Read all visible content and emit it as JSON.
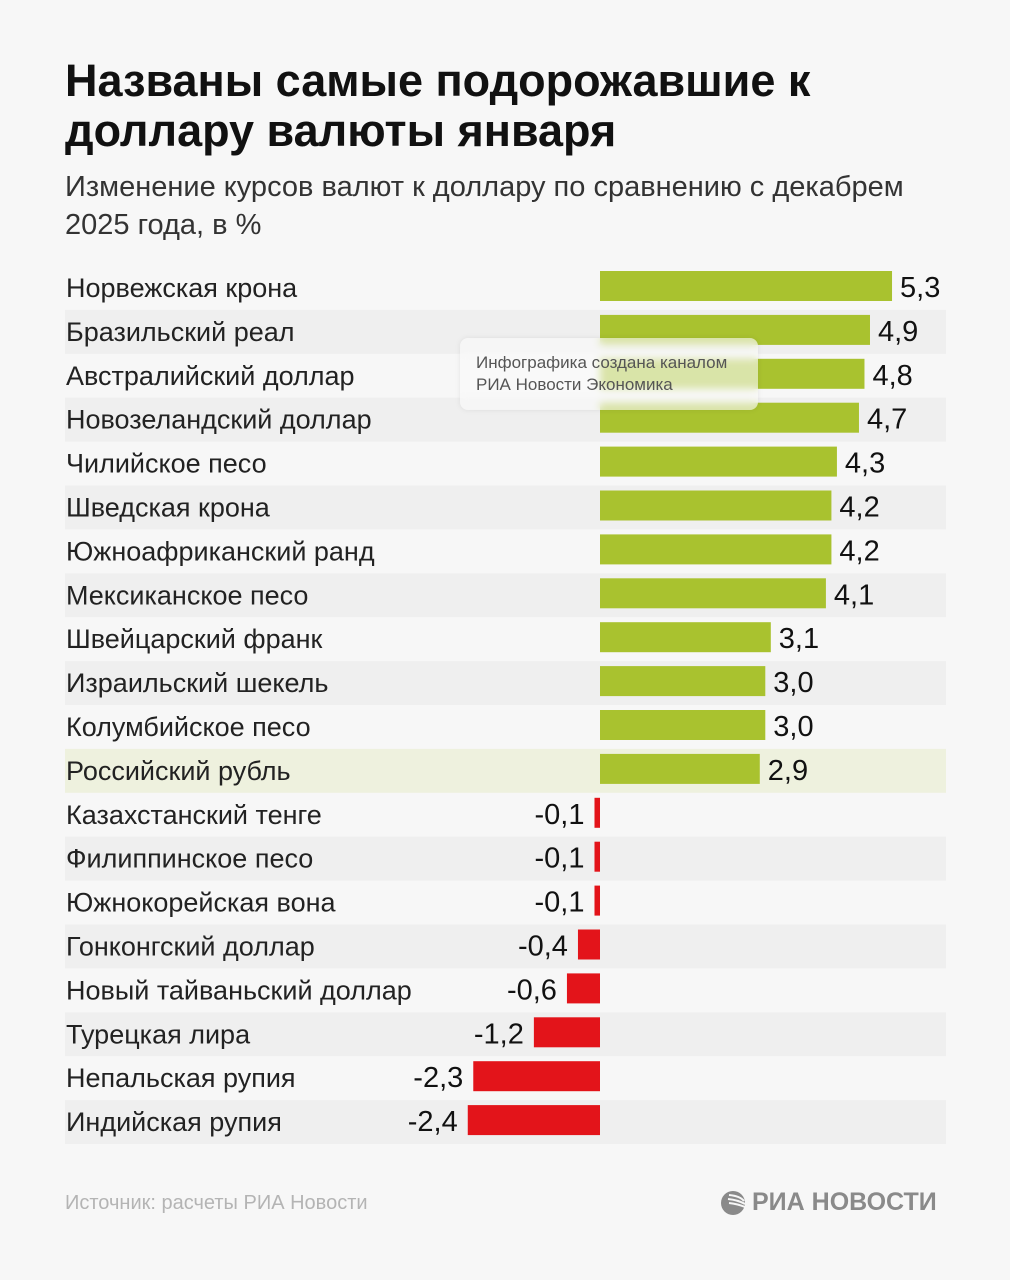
{
  "title": "Названы самые подорожавшие к доллару валюты января",
  "subtitle": "Изменение курсов валют к доллару по сравнению с декабрем 2025 года, в %",
  "source": "Источник: расчеты РИА Новости",
  "logo": "РИА НОВОСТИ",
  "watermark": "Инфографика создана каналом РИА Новости Экономика",
  "colors": {
    "positive": "#a9c22f",
    "negative": "#e3141a",
    "stripe": "#efefef",
    "highlight": "#eef1de"
  },
  "chart_data": {
    "type": "bar",
    "orientation": "horizontal",
    "highlight": "Российский рубль",
    "categories": [
      "Норвежская крона",
      "Бразильский реал",
      "Австралийский доллар",
      "Новозеландский доллар",
      "Чилийское песо",
      "Шведская крона",
      "Южноафриканский ранд",
      "Мексиканское песо",
      "Швейцарский франк",
      "Израильский шекель",
      "Колумбийское песо",
      "Российский рубль",
      "Казахстанский тенге",
      "Филиппинское песо",
      "Южнокорейская вона",
      "Гонконгский доллар",
      "Новый тайваньский доллар",
      "Турецкая лира",
      "Непальская рупия",
      "Индийская рупия"
    ],
    "values": [
      5.3,
      4.9,
      4.8,
      4.7,
      4.3,
      4.2,
      4.2,
      4.1,
      3.1,
      3.0,
      3.0,
      2.9,
      -0.1,
      -0.1,
      -0.1,
      -0.4,
      -0.6,
      -1.2,
      -2.3,
      -2.4
    ],
    "labels": [
      "5,3",
      "4,9",
      "4,8",
      "4,7",
      "4,3",
      "4,2",
      "4,2",
      "4,1",
      "3,1",
      "3,0",
      "3,0",
      "2,9",
      "-0,1",
      "-0,1",
      "-0,1",
      "-0,4",
      "-0,6",
      "-1,2",
      "-2,3",
      "-2,4"
    ]
  }
}
